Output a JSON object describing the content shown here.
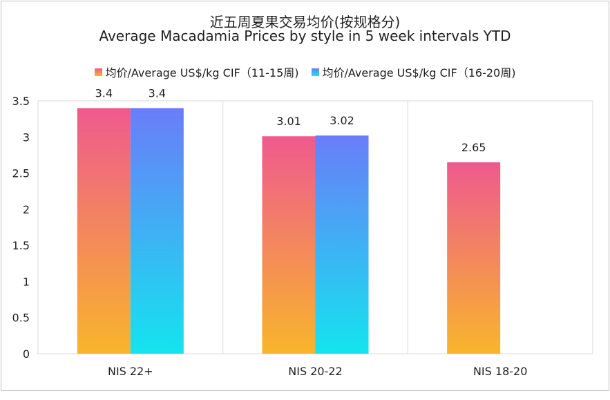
{
  "chart_data": {
    "type": "bar",
    "title": "近五周夏果交易均价(按规格分)",
    "subtitle": "Average Macadamia Prices by style in 5 week intervals YTD",
    "categories": [
      "NIS 22+",
      "NIS 20-22",
      "NIS 18-20"
    ],
    "series": [
      {
        "name": "均价/Average US$/kg CIF（11-15周)",
        "values": [
          3.4,
          3.01,
          2.65
        ],
        "data_labels": [
          "3.4",
          "3.01",
          "2.65"
        ],
        "gradient": [
          "#ef5a8e",
          "#f8b52c"
        ]
      },
      {
        "name": "均价/Average US$/kg CIF（16-20周)",
        "values": [
          3.4,
          3.02,
          null
        ],
        "data_labels": [
          "3.4",
          "3.02",
          ""
        ],
        "gradient": [
          "#6a7df8",
          "#14e4ef"
        ]
      }
    ],
    "ylim": [
      0,
      3.5
    ],
    "yticks": [
      0,
      0.5,
      1,
      1.5,
      2,
      2.5,
      3,
      3.5
    ],
    "ytick_labels": [
      "0",
      "0.5",
      "1",
      "1.5",
      "2",
      "2.5",
      "3",
      "3.5"
    ],
    "xlabel": "",
    "ylabel": "",
    "grid": "vertical category separators",
    "legend_position": "top"
  }
}
